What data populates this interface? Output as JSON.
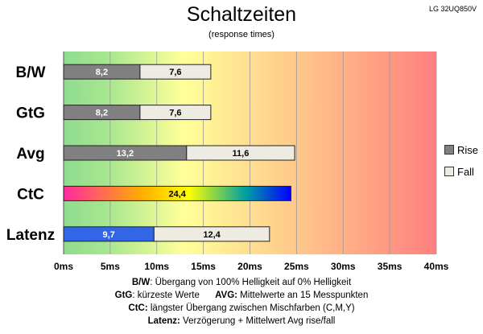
{
  "model_label": "LG 32UQ850V",
  "chart_data": {
    "type": "bar",
    "orientation": "horizontal",
    "stacked": true,
    "title": "Schaltzeiten",
    "subtitle": "(response times)",
    "categories": [
      "B/W",
      "GtG",
      "Avg",
      "CtC",
      "Latenz"
    ],
    "series": [
      {
        "name": "Rise",
        "values": [
          8.2,
          8.2,
          13.2,
          null,
          9.7
        ],
        "color": "#808080"
      },
      {
        "name": "Fall",
        "values": [
          7.6,
          7.6,
          11.6,
          null,
          12.4
        ],
        "color": "#eeebe3"
      }
    ],
    "ctc_total": 24.4,
    "latenz_rise_color": "#3366e6",
    "ctc_gradient": [
      "#ff2aa0",
      "#ffb000",
      "#ffff00",
      "#00a0a0",
      "#0000ff"
    ],
    "value_labels": {
      "B/W": [
        "8,2",
        "7,6"
      ],
      "GtG": [
        "8,2",
        "7,6"
      ],
      "Avg": [
        "13,2",
        "11,6"
      ],
      "CtC": [
        "24,4"
      ],
      "Latenz": [
        "9,7",
        "12,4"
      ]
    },
    "x_ticks": [
      "0ms",
      "5ms",
      "10ms",
      "15ms",
      "20ms",
      "25ms",
      "30ms",
      "35ms",
      "40ms"
    ],
    "xlim": [
      0,
      40
    ],
    "grid": true,
    "background_gradient": [
      "#8fdc8f",
      "#ffff99",
      "#ff7f7f"
    ],
    "legend_position": "right"
  },
  "notes": {
    "line1_key": "B/W",
    "line1_text": ":  Übergang von 100% Helligkeit auf 0% Helligkeit",
    "line2_key_a": "GtG",
    "line2_text_a": ": kürzeste  Werte",
    "line2_key_b": "AVG:",
    "line2_text_b": " Mittelwerte  an 15 Messpunkten",
    "line3_key": "CtC:",
    "line3_text": " längster Übergang  zwischen Mischfarben  (C,M,Y)",
    "line4_key": "Latenz:",
    "line4_text": " Verzögerung  + Mittelwert  Avg rise/fall"
  }
}
